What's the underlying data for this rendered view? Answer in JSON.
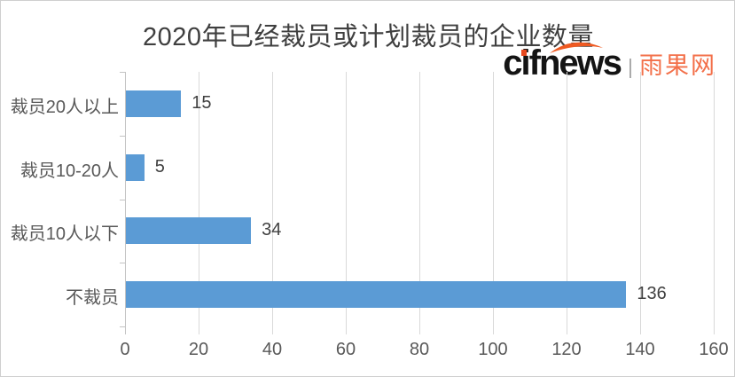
{
  "chart_data": {
    "type": "bar",
    "orientation": "horizontal",
    "title": "2020年已经裁员或计划裁员的企业数量",
    "categories": [
      "裁员20人以上",
      "裁员10-20人",
      "裁员10人以下",
      "不裁员"
    ],
    "values": [
      15,
      5,
      34,
      136
    ],
    "data_labels": [
      "15",
      "5",
      "34",
      "136"
    ],
    "xlim": [
      0,
      160
    ],
    "x_ticks": [
      0,
      20,
      40,
      60,
      80,
      100,
      120,
      140,
      160
    ],
    "grid": true,
    "legend": "none",
    "bar_color": "#5b9bd5",
    "gridline_color": "#d9d9d9",
    "axis_color": "#c3c3c3",
    "title_color": "#3f3f3f",
    "label_color": "#595959",
    "data_label_color": "#404040"
  },
  "branding": {
    "wordmark": "cifnews",
    "separator": "|",
    "site_name": "雨果网",
    "orange": "#ef5a22",
    "black": "#141414"
  }
}
